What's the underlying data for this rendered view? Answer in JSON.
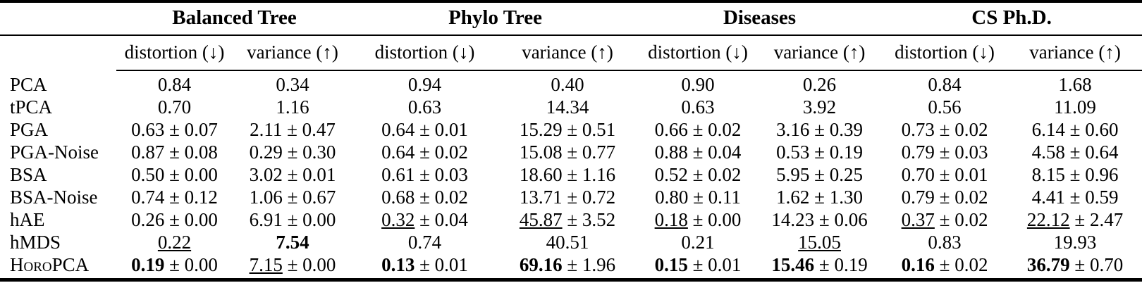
{
  "table": {
    "pm": "±",
    "groups": [
      {
        "label": "Balanced Tree",
        "columns": [
          "distortion (↓)",
          "variance (↑)"
        ]
      },
      {
        "label": "Phylo Tree",
        "columns": [
          "distortion (↓)",
          "variance (↑)"
        ]
      },
      {
        "label": "Diseases",
        "columns": [
          "distortion (↓)",
          "variance (↑)"
        ]
      },
      {
        "label": "CS Ph.D.",
        "columns": [
          "distortion (↓)",
          "variance (↑)"
        ]
      }
    ],
    "rows": [
      {
        "label": "PCA",
        "cells": [
          {
            "mean": "0.84"
          },
          {
            "mean": "0.34"
          },
          {
            "mean": "0.94"
          },
          {
            "mean": "0.40"
          },
          {
            "mean": "0.90"
          },
          {
            "mean": "0.26"
          },
          {
            "mean": "0.84"
          },
          {
            "mean": "1.68"
          }
        ]
      },
      {
        "label": "tPCA",
        "cells": [
          {
            "mean": "0.70"
          },
          {
            "mean": "1.16"
          },
          {
            "mean": "0.63"
          },
          {
            "mean": "14.34"
          },
          {
            "mean": "0.63"
          },
          {
            "mean": "3.92"
          },
          {
            "mean": "0.56"
          },
          {
            "mean": "11.09"
          }
        ]
      },
      {
        "label": "PGA",
        "cells": [
          {
            "mean": "0.63",
            "std": "0.07"
          },
          {
            "mean": "2.11",
            "std": "0.47"
          },
          {
            "mean": "0.64",
            "std": "0.01"
          },
          {
            "mean": "15.29",
            "std": "0.51"
          },
          {
            "mean": "0.66",
            "std": "0.02"
          },
          {
            "mean": "3.16",
            "std": "0.39"
          },
          {
            "mean": "0.73",
            "std": "0.02"
          },
          {
            "mean": "6.14",
            "std": "0.60"
          }
        ]
      },
      {
        "label": "PGA-Noise",
        "cells": [
          {
            "mean": "0.87",
            "std": "0.08"
          },
          {
            "mean": "0.29",
            "std": "0.30"
          },
          {
            "mean": "0.64",
            "std": "0.02"
          },
          {
            "mean": "15.08",
            "std": "0.77"
          },
          {
            "mean": "0.88",
            "std": "0.04"
          },
          {
            "mean": "0.53",
            "std": "0.19"
          },
          {
            "mean": "0.79",
            "std": "0.03"
          },
          {
            "mean": "4.58",
            "std": "0.64"
          }
        ]
      },
      {
        "label": "BSA",
        "cells": [
          {
            "mean": "0.50",
            "std": "0.00"
          },
          {
            "mean": "3.02",
            "std": "0.01"
          },
          {
            "mean": "0.61",
            "std": "0.03"
          },
          {
            "mean": "18.60",
            "std": "1.16"
          },
          {
            "mean": "0.52",
            "std": "0.02"
          },
          {
            "mean": "5.95",
            "std": "0.25"
          },
          {
            "mean": "0.70",
            "std": "0.01"
          },
          {
            "mean": "8.15",
            "std": "0.96"
          }
        ]
      },
      {
        "label": "BSA-Noise",
        "cells": [
          {
            "mean": "0.74",
            "std": "0.12"
          },
          {
            "mean": "1.06",
            "std": "0.67"
          },
          {
            "mean": "0.68",
            "std": "0.02"
          },
          {
            "mean": "13.71",
            "std": "0.72"
          },
          {
            "mean": "0.80",
            "std": "0.11"
          },
          {
            "mean": "1.62",
            "std": "1.30"
          },
          {
            "mean": "0.79",
            "std": "0.02"
          },
          {
            "mean": "4.41",
            "std": "0.59"
          }
        ]
      },
      {
        "label": "hAE",
        "cells": [
          {
            "mean": "0.26",
            "std": "0.00"
          },
          {
            "mean": "6.91",
            "std": "0.00"
          },
          {
            "mean": "0.32",
            "std": "0.04",
            "underline": true
          },
          {
            "mean": "45.87",
            "std": "3.52",
            "underline": true
          },
          {
            "mean": "0.18",
            "std": "0.00",
            "underline": true
          },
          {
            "mean": "14.23",
            "std": "0.06"
          },
          {
            "mean": "0.37",
            "std": "0.02",
            "underline": true
          },
          {
            "mean": "22.12",
            "std": "2.47",
            "underline": true
          }
        ]
      },
      {
        "label": "hMDS",
        "cells": [
          {
            "mean": "0.22",
            "underline": true
          },
          {
            "mean": "7.54",
            "bold": true
          },
          {
            "mean": "0.74"
          },
          {
            "mean": "40.51"
          },
          {
            "mean": "0.21"
          },
          {
            "mean": "15.05",
            "underline": true
          },
          {
            "mean": "0.83"
          },
          {
            "mean": "19.93"
          }
        ]
      },
      {
        "label": "HoroPCA",
        "smallcaps": true,
        "cells": [
          {
            "mean": "0.19",
            "std": "0.00",
            "bold": true
          },
          {
            "mean": "7.15",
            "std": "0.00",
            "underline": true
          },
          {
            "mean": "0.13",
            "std": "0.01",
            "bold": true
          },
          {
            "mean": "69.16",
            "std": "1.96",
            "bold": true
          },
          {
            "mean": "0.15",
            "std": "0.01",
            "bold": true
          },
          {
            "mean": "15.46",
            "std": "0.19",
            "bold": true
          },
          {
            "mean": "0.16",
            "std": "0.02",
            "bold": true
          },
          {
            "mean": "36.79",
            "std": "0.70",
            "bold": true
          }
        ]
      }
    ]
  }
}
